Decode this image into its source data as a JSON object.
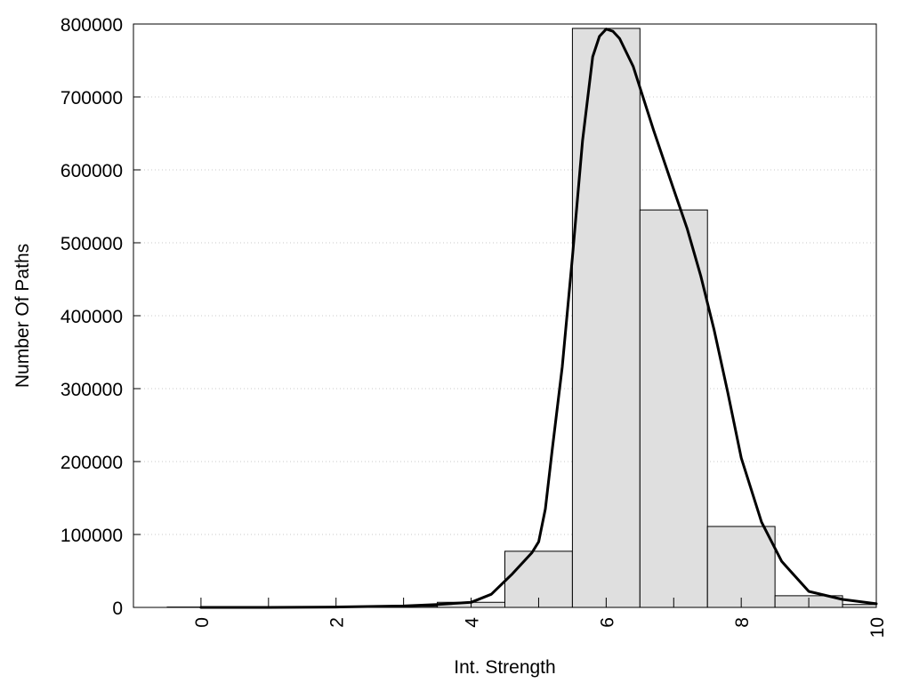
{
  "chart_data": {
    "type": "bar",
    "title": "",
    "xlabel": "Int. Strength",
    "ylabel": "Number Of Paths",
    "xlim": [
      -1,
      10
    ],
    "ylim": [
      0,
      800000
    ],
    "x_ticks": [
      0,
      2,
      4,
      6,
      8,
      10
    ],
    "x_tick_labels": [
      "0",
      "2",
      "4",
      "6",
      "8",
      "10"
    ],
    "x_minor_ticks": [
      1,
      3,
      5,
      7,
      9
    ],
    "y_ticks": [
      0,
      100000,
      200000,
      300000,
      400000,
      500000,
      600000,
      700000,
      800000
    ],
    "y_tick_labels": [
      "0",
      "100000",
      "200000",
      "300000",
      "400000",
      "500000",
      "600000",
      "700000",
      "800000"
    ],
    "grid": "horizontal dotted",
    "legend": "none",
    "bar_width": 1,
    "bars": [
      {
        "x": 0,
        "value": 500
      },
      {
        "x": 1,
        "value": 600
      },
      {
        "x": 2,
        "value": 800
      },
      {
        "x": 3,
        "value": 1500
      },
      {
        "x": 4,
        "value": 7000
      },
      {
        "x": 5,
        "value": 77000
      },
      {
        "x": 6,
        "value": 794000
      },
      {
        "x": 7,
        "value": 545000
      },
      {
        "x": 8,
        "value": 111000
      },
      {
        "x": 9,
        "value": 16000
      },
      {
        "x": 10,
        "value": 4000
      }
    ],
    "density_curve": {
      "x": [
        0,
        1,
        2,
        3,
        3.5,
        4,
        4.3,
        4.6,
        4.9,
        5,
        5.1,
        5.2,
        5.35,
        5.5,
        5.65,
        5.8,
        5.9,
        6,
        6.1,
        6.2,
        6.4,
        6.7,
        7,
        7.2,
        7.4,
        7.6,
        7.8,
        8,
        8.3,
        8.6,
        9,
        9.5,
        10
      ],
      "y": [
        0,
        0,
        500,
        2000,
        4000,
        7000,
        18000,
        45000,
        75000,
        90000,
        135000,
        215000,
        330000,
        480000,
        640000,
        755000,
        783000,
        793000,
        790000,
        780000,
        742000,
        655000,
        573000,
        519000,
        455000,
        380000,
        295000,
        205000,
        117000,
        63000,
        22000,
        11000,
        5000
      ]
    },
    "colors": {
      "bar_fill": "#dfdfdf",
      "bar_stroke": "#000000",
      "curve": "#000000",
      "grid": "#c8c8c8"
    }
  }
}
